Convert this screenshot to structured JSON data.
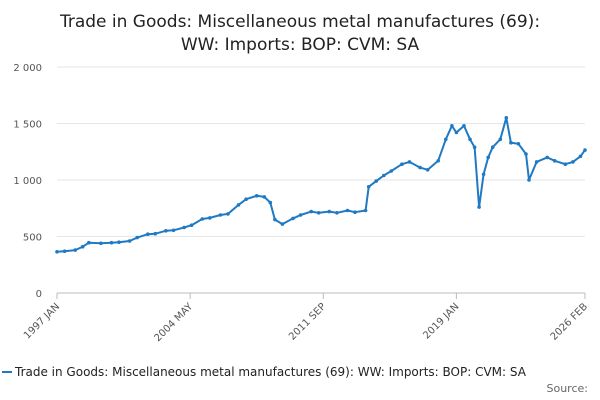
{
  "chart_data": {
    "type": "line",
    "title": [
      "Trade in Goods: Miscellaneous metal manufactures (69):",
      "WW: Imports: BOP: CVM: SA"
    ],
    "xlabel": "",
    "ylabel": "",
    "ylim": [
      0,
      2000
    ],
    "yticks": [
      0,
      500,
      1000,
      1500,
      2000
    ],
    "ytick_labels": [
      "0",
      "500",
      "1 000",
      "1 500",
      "2 000"
    ],
    "xlim": [
      "1997-01",
      "2026-02"
    ],
    "xtick_labels": [
      {
        "date": "1997-01",
        "label": "1997 JAN"
      },
      {
        "date": "2004-05",
        "label": "2004 MAY"
      },
      {
        "date": "2011-09",
        "label": "2011 SEP"
      },
      {
        "date": "2019-01",
        "label": "2019 JAN"
      },
      {
        "date": "2026-02",
        "label": "2026 FEB"
      }
    ],
    "grid": true,
    "legend_position": "bottom",
    "series": [
      {
        "name": "Trade in Goods: Miscellaneous metal manufactures (69): WW: Imports: BOP: CVM: SA",
        "color": "#1f7ac3",
        "points": [
          [
            "1997-01",
            365
          ],
          [
            "1997-06",
            370
          ],
          [
            "1998-01",
            380
          ],
          [
            "1998-06",
            410
          ],
          [
            "1998-10",
            445
          ],
          [
            "1999-06",
            440
          ],
          [
            "2000-01",
            445
          ],
          [
            "2000-06",
            450
          ],
          [
            "2001-01",
            460
          ],
          [
            "2001-06",
            490
          ],
          [
            "2002-01",
            520
          ],
          [
            "2002-06",
            525
          ],
          [
            "2003-01",
            550
          ],
          [
            "2003-06",
            555
          ],
          [
            "2004-01",
            580
          ],
          [
            "2004-06",
            600
          ],
          [
            "2005-01",
            655
          ],
          [
            "2005-06",
            665
          ],
          [
            "2006-01",
            690
          ],
          [
            "2006-06",
            700
          ],
          [
            "2007-01",
            780
          ],
          [
            "2007-06",
            830
          ],
          [
            "2008-01",
            860
          ],
          [
            "2008-06",
            850
          ],
          [
            "2008-10",
            800
          ],
          [
            "2009-01",
            650
          ],
          [
            "2009-06",
            610
          ],
          [
            "2010-01",
            660
          ],
          [
            "2010-06",
            690
          ],
          [
            "2011-01",
            720
          ],
          [
            "2011-06",
            710
          ],
          [
            "2012-01",
            720
          ],
          [
            "2012-06",
            710
          ],
          [
            "2013-01",
            730
          ],
          [
            "2013-06",
            715
          ],
          [
            "2014-01",
            730
          ],
          [
            "2014-03",
            940
          ],
          [
            "2014-08",
            990
          ],
          [
            "2015-01",
            1040
          ],
          [
            "2015-06",
            1080
          ],
          [
            "2016-01",
            1140
          ],
          [
            "2016-06",
            1160
          ],
          [
            "2017-01",
            1110
          ],
          [
            "2017-06",
            1090
          ],
          [
            "2018-01",
            1170
          ],
          [
            "2018-06",
            1360
          ],
          [
            "2018-10",
            1480
          ],
          [
            "2019-01",
            1420
          ],
          [
            "2019-06",
            1480
          ],
          [
            "2019-10",
            1360
          ],
          [
            "2020-01",
            1290
          ],
          [
            "2020-04",
            760
          ],
          [
            "2020-07",
            1050
          ],
          [
            "2020-10",
            1200
          ],
          [
            "2021-01",
            1290
          ],
          [
            "2021-06",
            1360
          ],
          [
            "2021-10",
            1550
          ],
          [
            "2022-01",
            1330
          ],
          [
            "2022-06",
            1320
          ],
          [
            "2022-11",
            1230
          ],
          [
            "2023-01",
            1000
          ],
          [
            "2023-06",
            1160
          ],
          [
            "2024-01",
            1200
          ],
          [
            "2024-06",
            1170
          ],
          [
            "2025-01",
            1140
          ],
          [
            "2025-06",
            1160
          ],
          [
            "2025-11",
            1210
          ],
          [
            "2026-02",
            1265
          ]
        ]
      }
    ]
  },
  "legend_label": "Trade in Goods: Miscellaneous metal manufactures (69): WW: Imports: BOP: CVM: SA",
  "source_label": "Source:"
}
